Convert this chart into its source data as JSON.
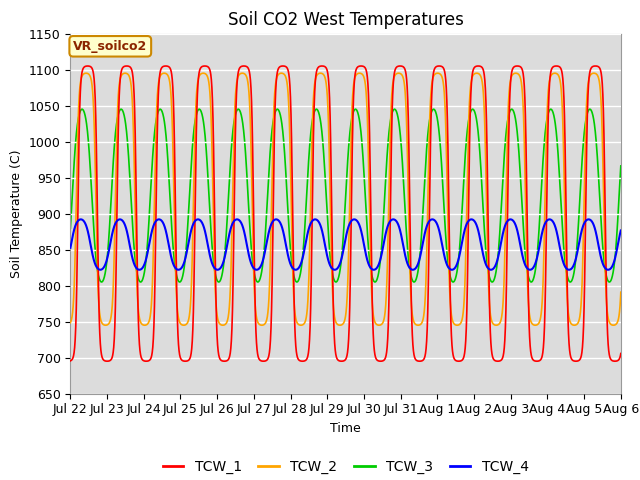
{
  "title": "Soil CO2 West Temperatures",
  "xlabel": "Time",
  "ylabel": "Soil Temperature (C)",
  "ylim": [
    650,
    1150
  ],
  "xlim_days": 15.5,
  "annotation": "VR_soilco2",
  "bg_color": "#dcdcdc",
  "series": {
    "TCW_1": {
      "color": "#ff0000",
      "linewidth": 1.2
    },
    "TCW_2": {
      "color": "#ffa500",
      "linewidth": 1.2
    },
    "TCW_3": {
      "color": "#00cc00",
      "linewidth": 1.2
    },
    "TCW_4": {
      "color": "#0000ff",
      "linewidth": 1.5
    }
  },
  "tick_labels": [
    "Jul 22",
    "Jul 23",
    "Jul 24",
    "Jul 25",
    "Jul 26",
    "Jul 27",
    "Jul 28",
    "Jul 29",
    "Jul 30",
    "Jul 31",
    "Aug 1",
    "Aug 2",
    "Aug 3",
    "Aug 4",
    "Aug 5",
    "Aug 6"
  ],
  "yticks": [
    650,
    700,
    750,
    800,
    850,
    900,
    950,
    1000,
    1050,
    1100,
    1150
  ],
  "legend_order": [
    "TCW_1",
    "TCW_2",
    "TCW_3",
    "TCW_4"
  ],
  "period_days": 1.1,
  "n_points": 3000,
  "TCW_1": {
    "mean": 900,
    "amp": 205,
    "phase": -1.2,
    "sharpness": 3.0
  },
  "TCW_2": {
    "mean": 920,
    "amp": 175,
    "phase": -0.95,
    "sharpness": 2.5
  },
  "TCW_3": {
    "mean": 925,
    "amp": 120,
    "phase": -0.3,
    "sharpness": 1.0
  },
  "TCW_4": {
    "mean": 857,
    "amp": 35,
    "phase": -0.1,
    "sharpness": 1.0
  }
}
